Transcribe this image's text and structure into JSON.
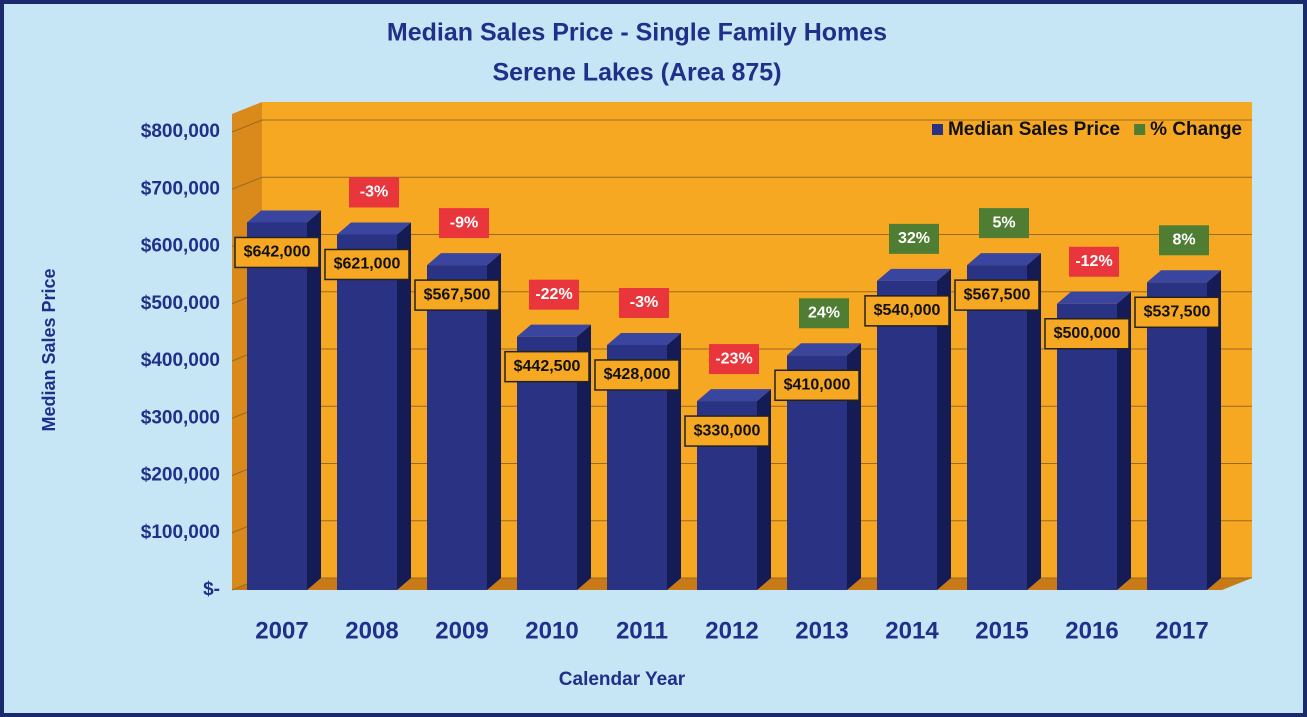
{
  "chart_data": {
    "type": "bar3d",
    "title": "Median Sales Price - Single Family Homes",
    "subtitle": "Serene Lakes (Area 875)",
    "x_label": "Calendar Year",
    "y_label": "Median Sales Price",
    "categories": [
      "2007",
      "2008",
      "2009",
      "2010",
      "2011",
      "2012",
      "2013",
      "2014",
      "2015",
      "2016",
      "2017"
    ],
    "series": [
      {
        "name": "Median Sales Price",
        "color": "#2a3383",
        "values": [
          642000,
          621000,
          567500,
          442500,
          428000,
          330000,
          410000,
          540000,
          567500,
          500000,
          537500
        ],
        "value_labels": [
          "$642,000",
          "$621,000",
          "$567,500",
          "$442,500",
          "$428,000",
          "$330,000",
          "$410,000",
          "$540,000",
          "$567,500",
          "$500,000",
          "$537,500"
        ]
      },
      {
        "name": "% Change",
        "color": "#4f7d34",
        "negative_color": "#e8363c",
        "values": [
          null,
          -3,
          -9,
          -22,
          -3,
          -23,
          24,
          32,
          5,
          -12,
          8
        ],
        "value_labels": [
          null,
          "-3%",
          "-9%",
          "-22%",
          "-3%",
          "-23%",
          "24%",
          "32%",
          "5%",
          "-12%",
          "8%"
        ]
      }
    ],
    "ylim": [
      0,
      800000
    ],
    "yticks": [
      {
        "value": 0,
        "label": "$-"
      },
      {
        "value": 100000,
        "label": "$100,000"
      },
      {
        "value": 200000,
        "label": "$200,000"
      },
      {
        "value": 300000,
        "label": "$300,000"
      },
      {
        "value": 400000,
        "label": "$400,000"
      },
      {
        "value": 500000,
        "label": "$500,000"
      },
      {
        "value": 600000,
        "label": "$600,000"
      },
      {
        "value": 700000,
        "label": "$700,000"
      },
      {
        "value": 800000,
        "label": "$800,000"
      }
    ],
    "grid": true,
    "legend": "top-right"
  }
}
